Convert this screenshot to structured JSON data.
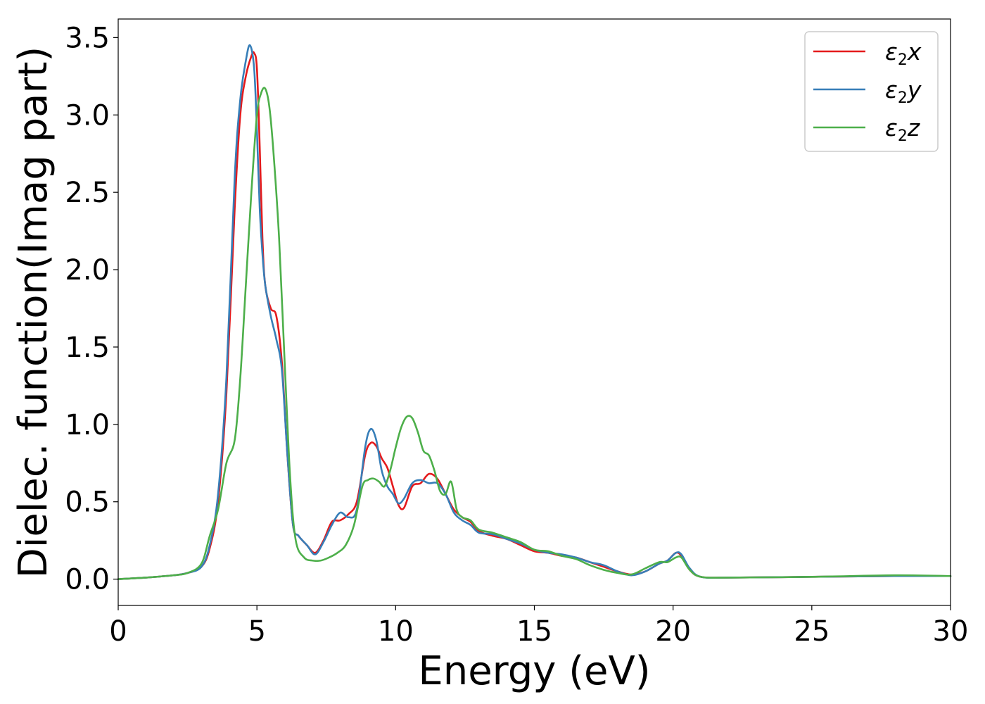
{
  "chart_data": {
    "type": "line",
    "title": "",
    "xlabel": "Energy (eV)",
    "ylabel": "Dielec. function(Imag part)",
    "xlim": [
      0,
      30
    ],
    "ylim": [
      -0.17,
      3.62
    ],
    "xticks": [
      0,
      5,
      10,
      15,
      20,
      25,
      30
    ],
    "xtick_labels": [
      "0",
      "5",
      "10",
      "15",
      "20",
      "25",
      "30"
    ],
    "yticks": [
      0.0,
      0.5,
      1.0,
      1.5,
      2.0,
      2.5,
      3.0,
      3.5
    ],
    "ytick_labels": [
      "0.0",
      "0.5",
      "1.0",
      "1.5",
      "2.0",
      "2.5",
      "3.0",
      "3.5"
    ],
    "grid": false,
    "legend_position": "top-right",
    "series": [
      {
        "name": "ε2x",
        "legend_base": "ε",
        "legend_sub": "2",
        "legend_var": "x",
        "color": "#e41a1c",
        "x": [
          0,
          1,
          2,
          2.5,
          3.0,
          3.3,
          3.6,
          3.9,
          4.2,
          4.4,
          4.6,
          4.8,
          4.9,
          5.0,
          5.1,
          5.2,
          5.3,
          5.5,
          5.7,
          5.9,
          6.1,
          6.3,
          6.5,
          6.8,
          7.1,
          7.4,
          7.7,
          8.0,
          8.3,
          8.6,
          8.9,
          9.1,
          9.3,
          9.5,
          9.7,
          9.9,
          10.1,
          10.3,
          10.6,
          10.9,
          11.2,
          11.5,
          11.8,
          12.1,
          12.4,
          12.7,
          13.0,
          13.5,
          14.0,
          14.5,
          15.0,
          15.5,
          16.0,
          16.5,
          17.0,
          17.5,
          18.0,
          18.5,
          19.0,
          19.5,
          19.8,
          20.1,
          20.3,
          20.6,
          21.0,
          22,
          25,
          28,
          30
        ],
        "y": [
          0.0,
          0.01,
          0.025,
          0.04,
          0.08,
          0.2,
          0.5,
          1.2,
          2.4,
          3.0,
          3.25,
          3.38,
          3.4,
          3.3,
          2.8,
          2.2,
          1.9,
          1.75,
          1.7,
          1.4,
          0.8,
          0.35,
          0.28,
          0.22,
          0.17,
          0.25,
          0.37,
          0.38,
          0.42,
          0.5,
          0.8,
          0.88,
          0.86,
          0.78,
          0.72,
          0.6,
          0.48,
          0.46,
          0.6,
          0.62,
          0.68,
          0.65,
          0.55,
          0.45,
          0.4,
          0.37,
          0.31,
          0.28,
          0.26,
          0.22,
          0.18,
          0.17,
          0.15,
          0.14,
          0.11,
          0.08,
          0.05,
          0.03,
          0.05,
          0.1,
          0.12,
          0.17,
          0.15,
          0.06,
          0.015,
          0.01,
          0.015,
          0.02,
          0.02
        ]
      },
      {
        "name": "ε2y",
        "legend_base": "ε",
        "legend_sub": "2",
        "legend_var": "y",
        "color": "#377eb8",
        "x": [
          0,
          1,
          2,
          2.5,
          3.0,
          3.3,
          3.6,
          3.9,
          4.2,
          4.4,
          4.6,
          4.75,
          4.9,
          5.0,
          5.1,
          5.2,
          5.3,
          5.5,
          5.7,
          5.9,
          6.1,
          6.3,
          6.5,
          6.8,
          7.1,
          7.4,
          7.7,
          8.0,
          8.3,
          8.6,
          8.9,
          9.1,
          9.3,
          9.5,
          9.7,
          9.9,
          10.1,
          10.3,
          10.6,
          10.9,
          11.2,
          11.5,
          11.8,
          12.1,
          12.4,
          12.7,
          13.0,
          13.5,
          14.0,
          14.5,
          15.0,
          15.5,
          16.0,
          16.5,
          17.0,
          17.5,
          18.0,
          18.5,
          19.0,
          19.5,
          19.8,
          20.1,
          20.3,
          20.6,
          21.0,
          22,
          25,
          28,
          30
        ],
        "y": [
          0.0,
          0.01,
          0.025,
          0.04,
          0.08,
          0.22,
          0.55,
          1.3,
          2.6,
          3.1,
          3.35,
          3.45,
          3.3,
          2.9,
          2.4,
          2.1,
          1.9,
          1.7,
          1.55,
          1.35,
          0.8,
          0.35,
          0.28,
          0.22,
          0.16,
          0.24,
          0.35,
          0.43,
          0.4,
          0.45,
          0.85,
          0.97,
          0.9,
          0.7,
          0.6,
          0.55,
          0.49,
          0.52,
          0.62,
          0.64,
          0.62,
          0.62,
          0.55,
          0.43,
          0.38,
          0.35,
          0.3,
          0.29,
          0.26,
          0.23,
          0.19,
          0.17,
          0.16,
          0.14,
          0.11,
          0.09,
          0.05,
          0.025,
          0.05,
          0.1,
          0.12,
          0.17,
          0.16,
          0.07,
          0.015,
          0.01,
          0.015,
          0.02,
          0.02
        ]
      },
      {
        "name": "ε2z",
        "legend_base": "ε",
        "legend_sub": "2",
        "legend_var": "z",
        "color": "#4daf4a",
        "x": [
          0,
          1,
          2,
          2.5,
          3.0,
          3.3,
          3.6,
          3.9,
          4.2,
          4.4,
          4.6,
          4.8,
          5.0,
          5.15,
          5.3,
          5.45,
          5.6,
          5.8,
          6.0,
          6.2,
          6.4,
          6.7,
          7.0,
          7.3,
          7.6,
          7.9,
          8.2,
          8.5,
          8.8,
          9.0,
          9.2,
          9.4,
          9.6,
          9.8,
          10.0,
          10.2,
          10.4,
          10.6,
          10.8,
          11.0,
          11.2,
          11.4,
          11.6,
          11.8,
          12.0,
          12.2,
          12.4,
          12.7,
          13.0,
          13.5,
          14.0,
          14.5,
          15.0,
          15.5,
          16.0,
          16.5,
          17.0,
          17.5,
          18.0,
          18.5,
          19.0,
          19.5,
          19.8,
          20.1,
          20.3,
          20.6,
          21.0,
          22,
          25,
          28,
          30
        ],
        "y": [
          0.0,
          0.01,
          0.025,
          0.04,
          0.1,
          0.28,
          0.45,
          0.75,
          0.9,
          1.3,
          1.9,
          2.5,
          3.0,
          3.14,
          3.17,
          3.05,
          2.75,
          2.2,
          1.4,
          0.65,
          0.25,
          0.14,
          0.12,
          0.12,
          0.14,
          0.17,
          0.22,
          0.35,
          0.6,
          0.64,
          0.65,
          0.63,
          0.6,
          0.7,
          0.85,
          0.98,
          1.05,
          1.04,
          0.95,
          0.83,
          0.8,
          0.7,
          0.57,
          0.55,
          0.63,
          0.45,
          0.4,
          0.38,
          0.32,
          0.3,
          0.27,
          0.24,
          0.19,
          0.18,
          0.15,
          0.13,
          0.09,
          0.06,
          0.04,
          0.03,
          0.07,
          0.11,
          0.11,
          0.14,
          0.14,
          0.06,
          0.015,
          0.01,
          0.015,
          0.025,
          0.02
        ]
      }
    ]
  }
}
